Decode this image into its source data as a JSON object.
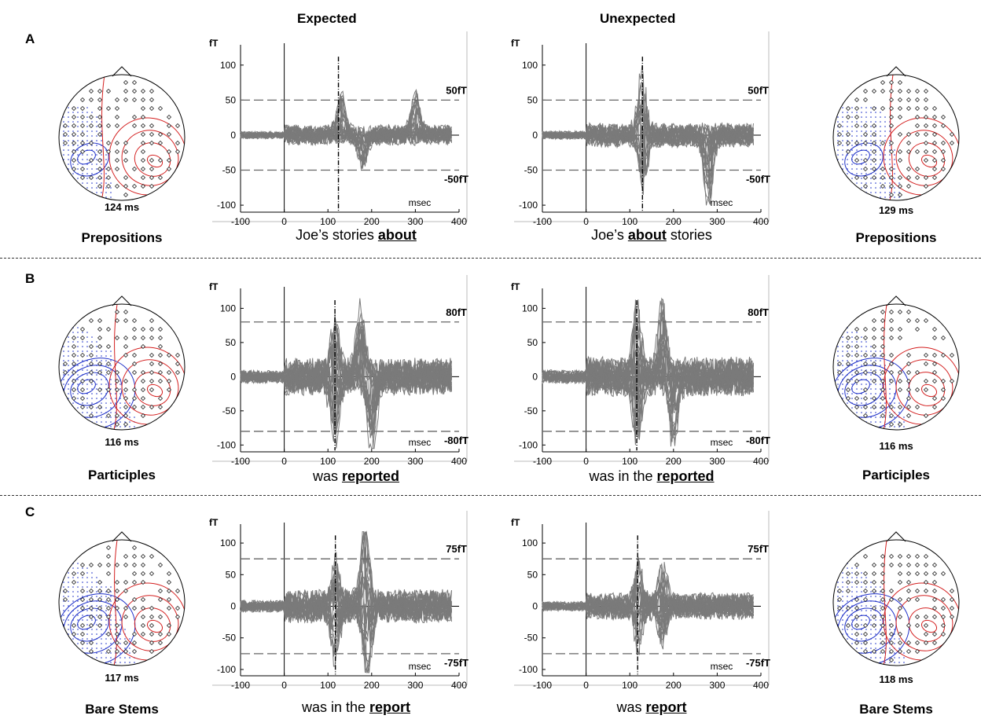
{
  "headers": {
    "expected": "Expected",
    "unexpected": "Unexpected"
  },
  "colors": {
    "trace": "#7a7a7a",
    "dashed": "#666666",
    "left_hemisphere": "#1d2fc8",
    "right_hemisphere": "#d42020"
  },
  "rows": [
    {
      "label": "A",
      "left_category": "Prepositions",
      "right_category": "Prepositions",
      "left_latency": "124 ms",
      "right_latency": "129 ms",
      "expected_caption": {
        "pre": "Joe’s stories ",
        "target": "about",
        "post": ""
      },
      "unexpected_caption": {
        "pre": "Joe’s ",
        "target": "about",
        "post": " stories"
      },
      "left_chart": {
        "unit_label": "fT",
        "threshold_label": "50fT",
        "neg_threshold_label": "-50fT"
      },
      "right_chart": {
        "unit_label": "fT",
        "threshold_label": "50fT",
        "neg_threshold_label": "-50fT"
      }
    },
    {
      "label": "B",
      "left_category": "Participles",
      "right_category": "Participles",
      "left_latency": "116 ms",
      "right_latency": "116 ms",
      "expected_caption": {
        "pre": "was ",
        "target": "reported",
        "post": ""
      },
      "unexpected_caption": {
        "pre": "was in the ",
        "target": "reported",
        "post": ""
      },
      "left_chart": {
        "unit_label": "fT",
        "threshold_label": "80fT",
        "neg_threshold_label": "-80fT"
      },
      "right_chart": {
        "unit_label": "fT",
        "threshold_label": "80fT",
        "neg_threshold_label": "-80fT"
      }
    },
    {
      "label": "C",
      "left_category": "Bare Stems",
      "right_category": "Bare Stems",
      "left_latency": "117 ms",
      "right_latency": "118 ms",
      "expected_caption": {
        "pre": "was in the ",
        "target": "report",
        "post": ""
      },
      "unexpected_caption": {
        "pre": "was ",
        "target": "report",
        "post": ""
      },
      "left_chart": {
        "unit_label": "fT",
        "threshold_label": "75fT",
        "neg_threshold_label": "-75fT"
      },
      "right_chart": {
        "unit_label": "fT",
        "threshold_label": "75fT",
        "neg_threshold_label": "-75fT"
      }
    }
  ],
  "chart_data": [
    {
      "type": "line",
      "panel": "A-expected",
      "x_unit": "msec",
      "y_unit": "fT",
      "xlim": [
        -100,
        400
      ],
      "ylim": [
        -110,
        120
      ],
      "xticks": [
        -100,
        0,
        100,
        200,
        300,
        400
      ],
      "yticks": [
        -100,
        -50,
        0,
        50,
        100
      ],
      "threshold": 50,
      "marker_ms": 124,
      "peaks": [
        {
          "x": 130,
          "y": 50
        },
        {
          "x": 180,
          "y": -40
        },
        {
          "x": 300,
          "y": 55
        }
      ],
      "amp": 38
    },
    {
      "type": "line",
      "panel": "A-unexpected",
      "x_unit": "msec",
      "y_unit": "fT",
      "xlim": [
        -100,
        400
      ],
      "ylim": [
        -110,
        120
      ],
      "xticks": [
        -100,
        0,
        100,
        200,
        300,
        400
      ],
      "yticks": [
        -100,
        -50,
        0,
        50,
        100
      ],
      "threshold": 50,
      "marker_ms": 129,
      "peaks": [
        {
          "x": 128,
          "y": 88
        },
        {
          "x": 130,
          "y": -70
        },
        {
          "x": 280,
          "y": -90
        }
      ],
      "amp": 45
    },
    {
      "type": "line",
      "panel": "B-expected",
      "x_unit": "msec",
      "y_unit": "fT",
      "xlim": [
        -100,
        400
      ],
      "ylim": [
        -110,
        120
      ],
      "xticks": [
        -100,
        0,
        100,
        200,
        300,
        400
      ],
      "yticks": [
        -100,
        -50,
        0,
        50,
        100
      ],
      "threshold": 80,
      "marker_ms": 116,
      "peaks": [
        {
          "x": 116,
          "y": 88
        },
        {
          "x": 116,
          "y": -92
        },
        {
          "x": 175,
          "y": 90
        },
        {
          "x": 200,
          "y": -100
        }
      ],
      "amp": 70
    },
    {
      "type": "line",
      "panel": "B-unexpected",
      "x_unit": "msec",
      "y_unit": "fT",
      "xlim": [
        -100,
        400
      ],
      "ylim": [
        -110,
        120
      ],
      "xticks": [
        -100,
        0,
        100,
        200,
        300,
        400
      ],
      "yticks": [
        -100,
        -50,
        0,
        50,
        100
      ],
      "threshold": 80,
      "marker_ms": 116,
      "peaks": [
        {
          "x": 116,
          "y": 110
        },
        {
          "x": 116,
          "y": -92
        },
        {
          "x": 175,
          "y": 108
        },
        {
          "x": 200,
          "y": -95
        }
      ],
      "amp": 75
    },
    {
      "type": "line",
      "panel": "C-expected",
      "x_unit": "msec",
      "y_unit": "fT",
      "xlim": [
        -100,
        400
      ],
      "ylim": [
        -110,
        120
      ],
      "xticks": [
        -100,
        0,
        100,
        200,
        300,
        400
      ],
      "yticks": [
        -100,
        -50,
        0,
        50,
        100
      ],
      "threshold": 75,
      "marker_ms": 117,
      "peaks": [
        {
          "x": 118,
          "y": 55
        },
        {
          "x": 117,
          "y": -75
        },
        {
          "x": 185,
          "y": 115
        },
        {
          "x": 190,
          "y": -98
        }
      ],
      "amp": 70
    },
    {
      "type": "line",
      "panel": "C-unexpected",
      "x_unit": "msec",
      "y_unit": "fT",
      "xlim": [
        -100,
        400
      ],
      "ylim": [
        -110,
        120
      ],
      "xticks": [
        -100,
        0,
        100,
        200,
        300,
        400
      ],
      "yticks": [
        -100,
        -50,
        0,
        50,
        100
      ],
      "threshold": 75,
      "marker_ms": 118,
      "peaks": [
        {
          "x": 120,
          "y": 80
        },
        {
          "x": 120,
          "y": -60
        },
        {
          "x": 175,
          "y": 70
        },
        {
          "x": 175,
          "y": -60
        }
      ],
      "amp": 55
    }
  ]
}
